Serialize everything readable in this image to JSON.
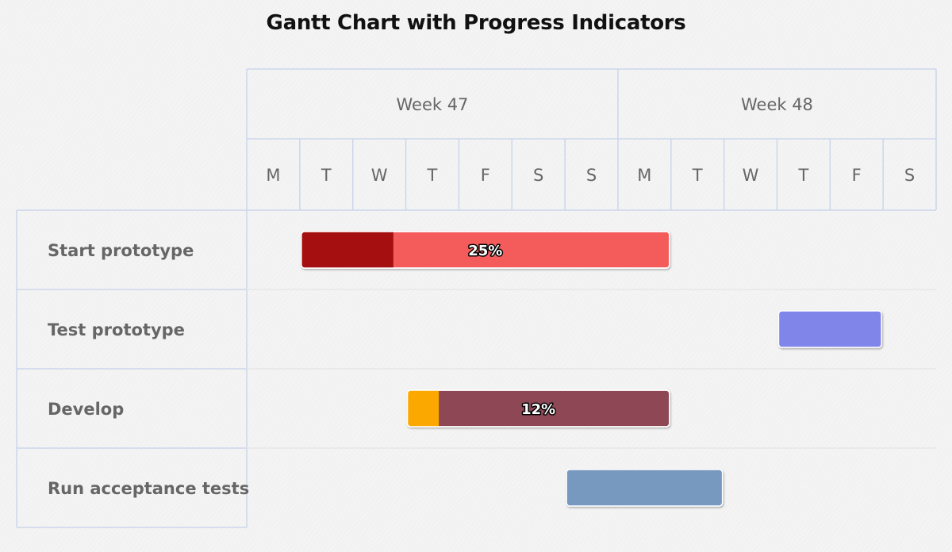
{
  "title": "Gantt Chart with Progress Indicators",
  "chart_data": {
    "type": "gantt",
    "title": "Gantt Chart with Progress Indicators",
    "weeks": [
      "Week 47",
      "Week 48"
    ],
    "days": [
      "M",
      "T",
      "W",
      "T",
      "F",
      "S",
      "S",
      "M",
      "T",
      "W",
      "T",
      "F",
      "S"
    ],
    "tasks": [
      {
        "name": "Start prototype",
        "start_day": 1,
        "end_day": 8,
        "completed": 0.25,
        "completed_label": "25%",
        "color": "#f45b5b",
        "completed_color": "#a50f0f"
      },
      {
        "name": "Test prototype",
        "start_day": 10,
        "end_day": 12,
        "completed": null,
        "completed_label": "",
        "color": "#8085e9",
        "completed_color": ""
      },
      {
        "name": "Develop",
        "start_day": 3,
        "end_day": 8,
        "completed": 0.12,
        "completed_label": "12%",
        "color": "#8d4654",
        "completed_color": "#fba800"
      },
      {
        "name": "Run acceptance tests",
        "start_day": 6,
        "end_day": 9,
        "completed": null,
        "completed_label": "",
        "color": "#7798bf",
        "completed_color": ""
      }
    ]
  }
}
